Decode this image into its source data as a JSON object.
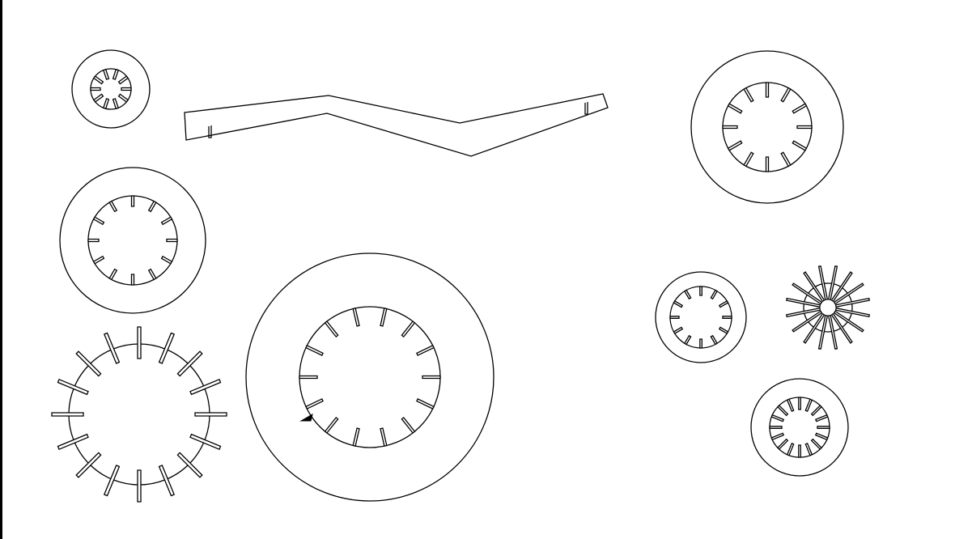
{
  "canvas": {
    "background": "#ffffff",
    "stroke": "#000000"
  },
  "drawing": {
    "type": "cad-outline-drawing",
    "part_count": 9,
    "parts": [
      {
        "name": "small-washer-top-left",
        "kind": "toothed-washer",
        "outer_ring": true,
        "tooth_count": 10,
        "tooth_orientation": "inward"
      },
      {
        "name": "bent-strip",
        "kind": "bent-strip",
        "notches": 2
      },
      {
        "name": "washer-top-right",
        "kind": "toothed-washer",
        "outer_ring": true,
        "tooth_count": 12,
        "tooth_orientation": "inward"
      },
      {
        "name": "washer-middle-left",
        "kind": "toothed-washer",
        "outer_ring": true,
        "tooth_count": 12,
        "tooth_orientation": "inward"
      },
      {
        "name": "external-tooth-washer-bottom-left",
        "kind": "toothed-washer",
        "outer_ring": false,
        "tooth_count": 16,
        "tooth_orientation": "crossing"
      },
      {
        "name": "large-washer-center",
        "kind": "toothed-washer",
        "outer_ring": true,
        "tooth_count": 14,
        "tooth_orientation": "inward"
      },
      {
        "name": "small-washer-right",
        "kind": "toothed-washer",
        "outer_ring": true,
        "tooth_count": 12,
        "tooth_orientation": "inward"
      },
      {
        "name": "external-tooth-washer-right",
        "kind": "toothed-washer",
        "outer_ring": false,
        "tooth_count": 16,
        "tooth_orientation": "crossing"
      },
      {
        "name": "washer-bottom-right",
        "kind": "toothed-washer",
        "outer_ring": true,
        "tooth_count": 16,
        "tooth_orientation": "inward"
      }
    ]
  }
}
